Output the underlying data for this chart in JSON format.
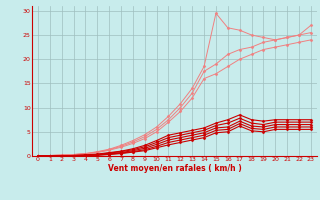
{
  "bg_color": "#c8ecec",
  "grid_color": "#9fbfbf",
  "line_color_light": "#f08080",
  "line_color_dark": "#cc0000",
  "xlabel": "Vent moyen/en rafales ( km/h )",
  "ylabel_ticks": [
    0,
    5,
    10,
    15,
    20,
    25,
    30
  ],
  "x_ticks": [
    0,
    1,
    2,
    3,
    4,
    5,
    6,
    7,
    8,
    9,
    10,
    11,
    12,
    13,
    14,
    15,
    16,
    17,
    18,
    19,
    20,
    21,
    22,
    23
  ],
  "xlim": [
    -0.5,
    23.5
  ],
  "ylim": [
    0,
    31
  ],
  "lines_light": [
    [
      0.0,
      0.1,
      0.2,
      0.3,
      0.5,
      0.9,
      1.4,
      2.2,
      3.2,
      4.4,
      6.0,
      8.2,
      10.8,
      14.0,
      18.5,
      29.5,
      26.5,
      26.0,
      25.0,
      24.5,
      24.0,
      24.5,
      25.0,
      27.0
    ],
    [
      0.0,
      0.1,
      0.2,
      0.3,
      0.5,
      0.8,
      1.3,
      2.0,
      2.9,
      4.0,
      5.5,
      7.5,
      10.0,
      13.0,
      17.5,
      19.0,
      21.0,
      22.0,
      22.5,
      23.5,
      24.0,
      24.5,
      25.0,
      25.5
    ],
    [
      0.0,
      0.1,
      0.2,
      0.3,
      0.4,
      0.7,
      1.2,
      1.8,
      2.6,
      3.6,
      5.0,
      7.0,
      9.2,
      12.0,
      16.0,
      17.0,
      18.5,
      20.0,
      21.0,
      22.0,
      22.5,
      23.0,
      23.5,
      24.0
    ]
  ],
  "lines_dark": [
    [
      0.0,
      0.0,
      0.05,
      0.1,
      0.2,
      0.4,
      0.7,
      1.0,
      1.5,
      2.2,
      3.2,
      4.3,
      4.8,
      5.3,
      5.8,
      6.8,
      7.5,
      8.5,
      7.5,
      7.2,
      7.5,
      7.5,
      7.5,
      7.5
    ],
    [
      0.0,
      0.0,
      0.05,
      0.1,
      0.2,
      0.3,
      0.6,
      0.9,
      1.3,
      1.9,
      2.8,
      3.8,
      4.3,
      4.8,
      5.3,
      6.3,
      6.8,
      7.8,
      6.8,
      6.5,
      7.0,
      7.0,
      7.0,
      7.0
    ],
    [
      0.0,
      0.0,
      0.05,
      0.1,
      0.15,
      0.3,
      0.5,
      0.7,
      1.1,
      1.6,
      2.4,
      3.3,
      3.8,
      4.3,
      4.8,
      5.8,
      6.0,
      7.2,
      6.2,
      6.0,
      6.5,
      6.5,
      6.5,
      6.5
    ],
    [
      0.0,
      0.0,
      0.0,
      0.05,
      0.1,
      0.2,
      0.4,
      0.6,
      0.9,
      1.3,
      2.0,
      2.8,
      3.3,
      3.8,
      4.3,
      5.3,
      5.5,
      6.7,
      5.7,
      5.5,
      6.0,
      6.0,
      6.0,
      6.0
    ],
    [
      0.0,
      0.0,
      0.0,
      0.05,
      0.1,
      0.15,
      0.3,
      0.5,
      0.8,
      1.1,
      1.7,
      2.3,
      2.8,
      3.3,
      3.8,
      4.8,
      5.0,
      6.2,
      5.2,
      5.0,
      5.5,
      5.5,
      5.5,
      5.5
    ]
  ],
  "marker": "D",
  "marker_size": 1.5,
  "lw_light": 0.7,
  "lw_dark": 0.8,
  "tick_fontsize": 4.5,
  "xlabel_fontsize": 5.5
}
